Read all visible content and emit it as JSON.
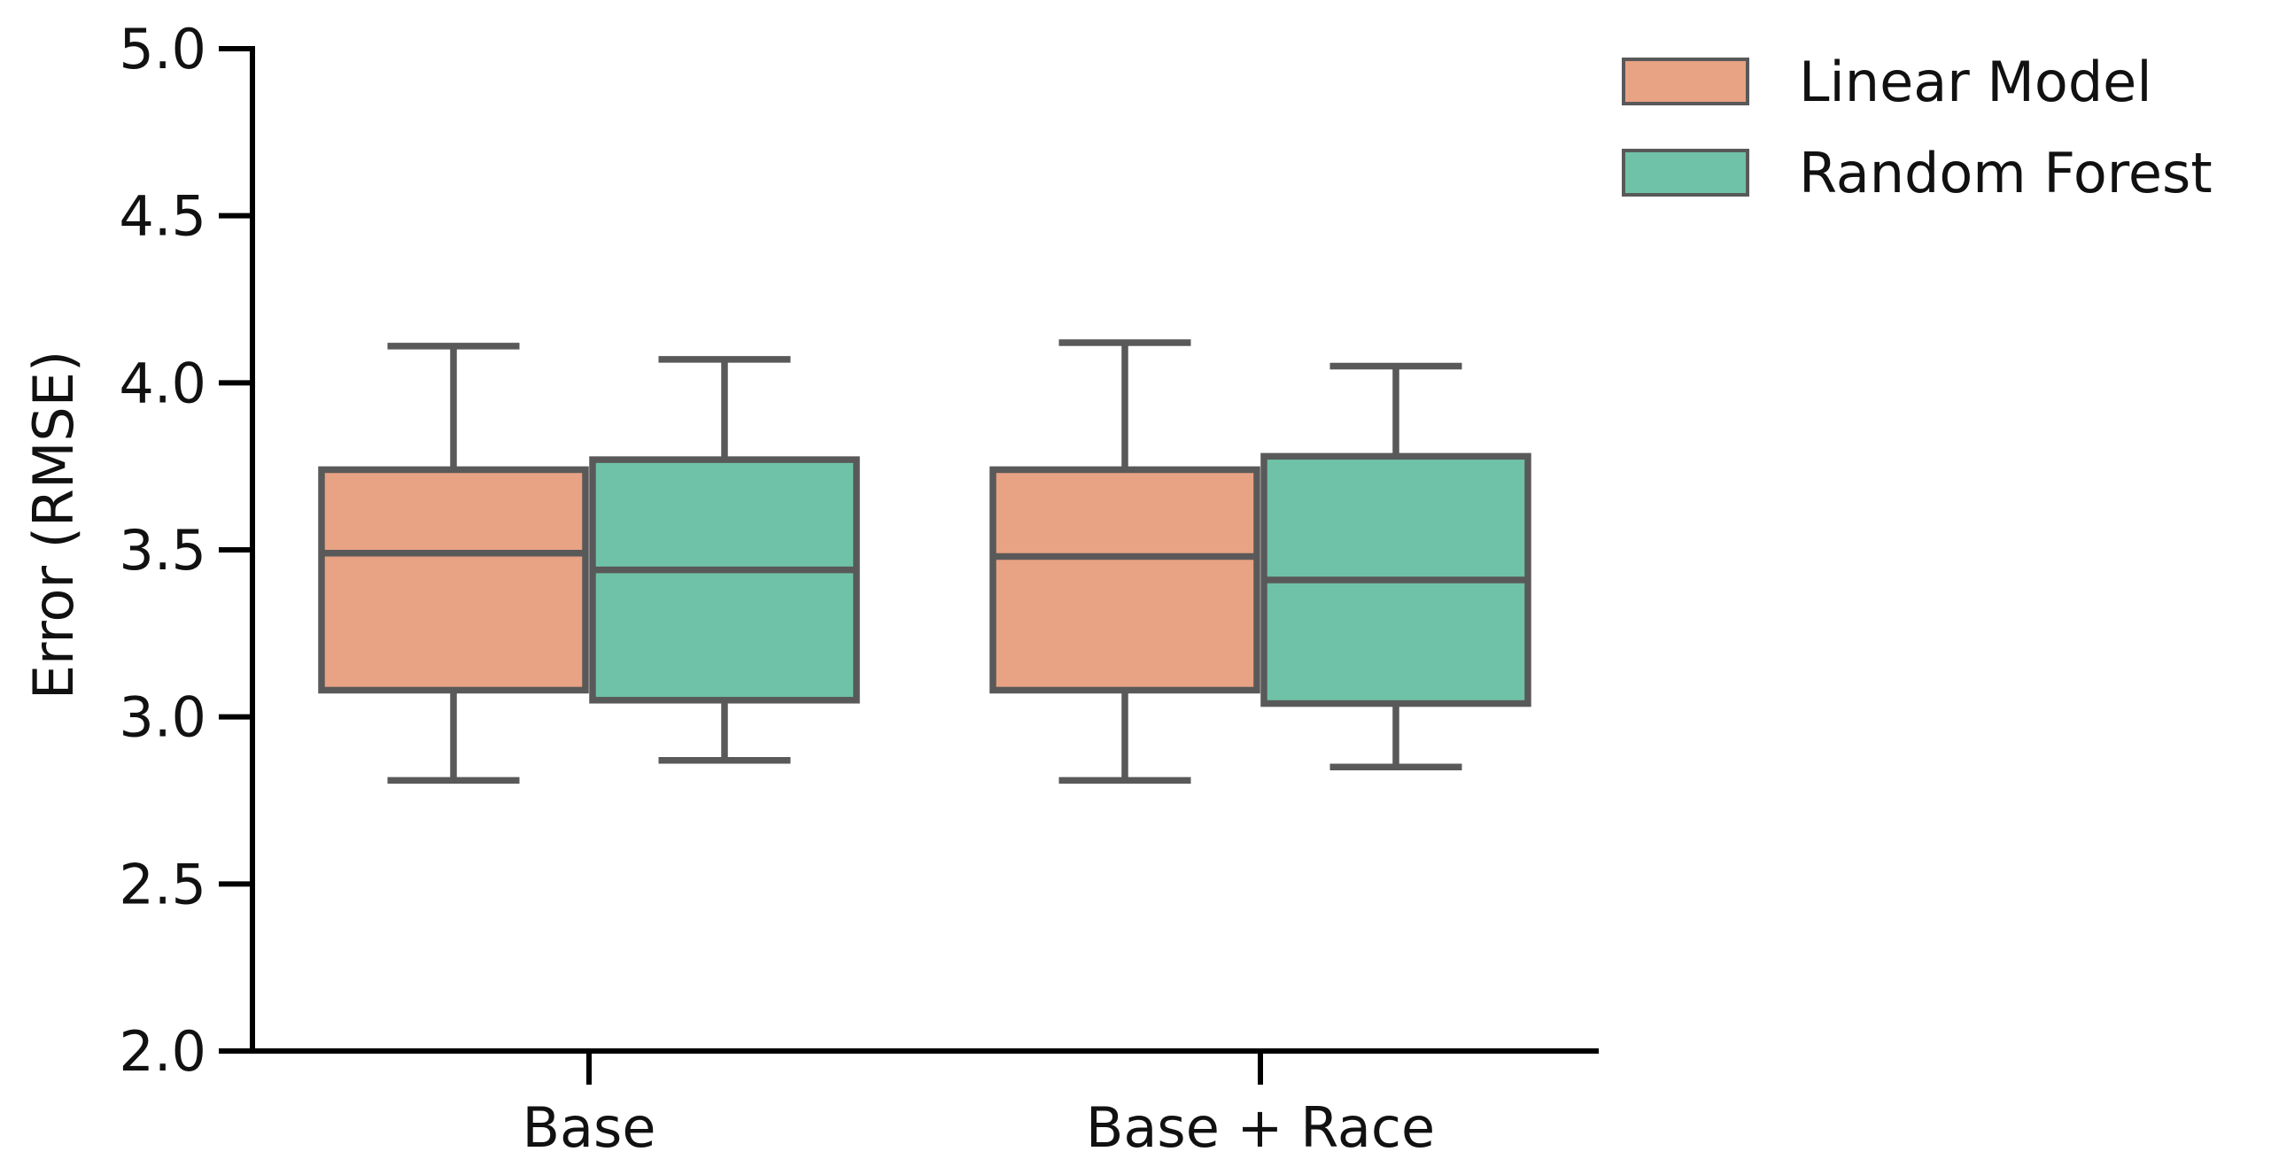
{
  "chart_data": {
    "type": "box",
    "title": "",
    "xlabel": "",
    "ylabel": "Error (RMSE)",
    "ylim": [
      2.0,
      5.0
    ],
    "yticks": [
      "2.0",
      "2.5",
      "3.0",
      "3.5",
      "4.0",
      "4.5",
      "5.0"
    ],
    "categories": [
      "Base",
      "Base + Race"
    ],
    "grid": false,
    "legend_position": "top-right",
    "series": [
      {
        "name": "Linear Model",
        "color": "#e8a284",
        "boxes": [
          {
            "whisker_low": 2.81,
            "q1": 3.08,
            "median": 3.49,
            "q3": 3.74,
            "whisker_high": 4.11
          },
          {
            "whisker_low": 2.81,
            "q1": 3.08,
            "median": 3.48,
            "q3": 3.74,
            "whisker_high": 4.12
          }
        ]
      },
      {
        "name": "Random Forest",
        "color": "#6fc2a7",
        "boxes": [
          {
            "whisker_low": 2.87,
            "q1": 3.05,
            "median": 3.44,
            "q3": 3.77,
            "whisker_high": 4.07
          },
          {
            "whisker_low": 2.85,
            "q1": 3.04,
            "median": 3.41,
            "q3": 3.78,
            "whisker_high": 4.05
          }
        ]
      }
    ],
    "edge_color": "#595959",
    "axis_color": "#000000"
  }
}
